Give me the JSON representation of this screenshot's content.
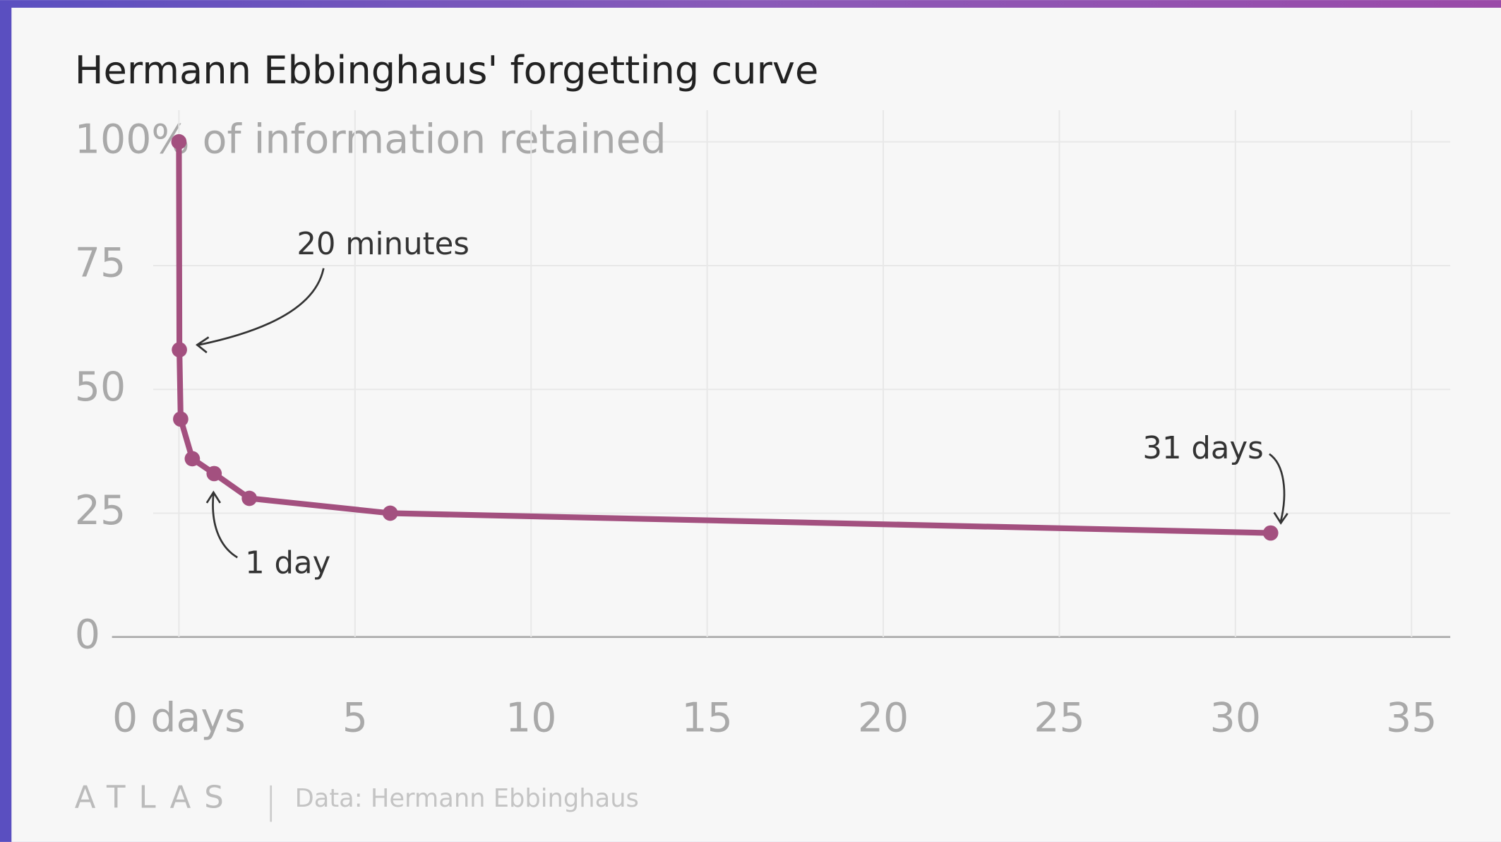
{
  "chart_data": {
    "type": "line",
    "title": "Hermann Ebbinghaus' forgetting curve",
    "x": [
      0,
      0.014,
      0.05,
      0.38,
      1,
      2,
      6,
      31
    ],
    "series": [
      {
        "name": "Information retained",
        "color": "#a3507f",
        "values": [
          100,
          58,
          44,
          36,
          33,
          28,
          25,
          21
        ]
      }
    ],
    "xlim": [
      -1.9,
      36.1
    ],
    "ylim": [
      0,
      100
    ],
    "xticks": [
      {
        "value": 0,
        "label": "0 days"
      },
      5,
      10,
      15,
      20,
      25,
      30,
      35
    ],
    "yticks": [
      0,
      25,
      50,
      75,
      {
        "value": 100,
        "label": "100% of information retained"
      }
    ],
    "grid": true,
    "annotations": [
      {
        "text": "20 minutes"
      },
      {
        "text": "1 day"
      },
      {
        "text": "31 days"
      }
    ],
    "brand": "ATLAS",
    "source": "Data: Hermann Ebbinghaus"
  }
}
